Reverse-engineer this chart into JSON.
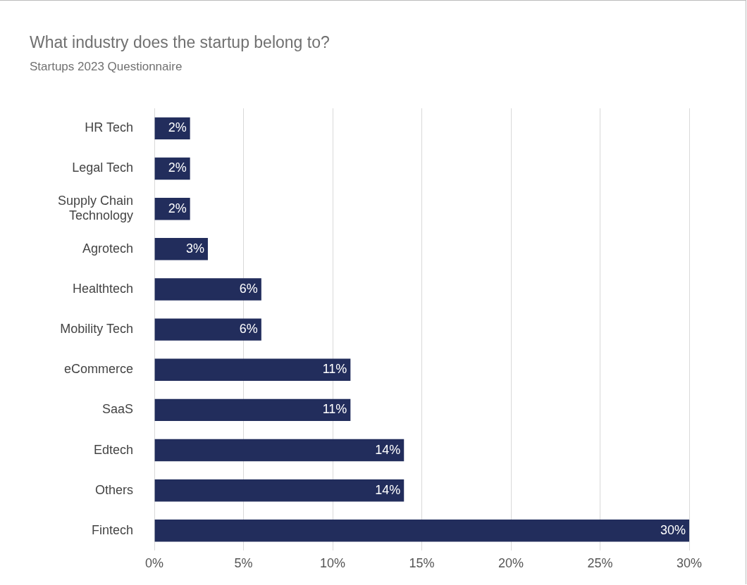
{
  "chart_data": {
    "type": "bar",
    "orientation": "horizontal",
    "title": "What industry does the startup belong to?",
    "subtitle": "Startups 2023 Questionnaire",
    "categories": [
      "HR Tech",
      "Legal Tech",
      "Supply Chain Technology",
      "Agrotech",
      "Healthtech",
      "Mobility Tech",
      "eCommerce",
      "SaaS",
      "Edtech",
      "Others",
      "Fintech"
    ],
    "values": [
      2,
      2,
      2,
      3,
      6,
      6,
      11,
      11,
      14,
      14,
      30
    ],
    "value_labels": [
      "2%",
      "2%",
      "2%",
      "3%",
      "6%",
      "6%",
      "11%",
      "11%",
      "14%",
      "14%",
      "30%"
    ],
    "color": "#222d5c",
    "xlim": [
      0,
      30
    ],
    "xticks": [
      {
        "value": 0,
        "label": "0%"
      },
      {
        "value": 5,
        "label": "5%"
      },
      {
        "value": 10,
        "label": "10%"
      },
      {
        "value": 15,
        "label": "15%"
      },
      {
        "value": 20,
        "label": "20%"
      },
      {
        "value": 25,
        "label": "25%"
      },
      {
        "value": 30,
        "label": "30%"
      }
    ],
    "grid": "x"
  }
}
